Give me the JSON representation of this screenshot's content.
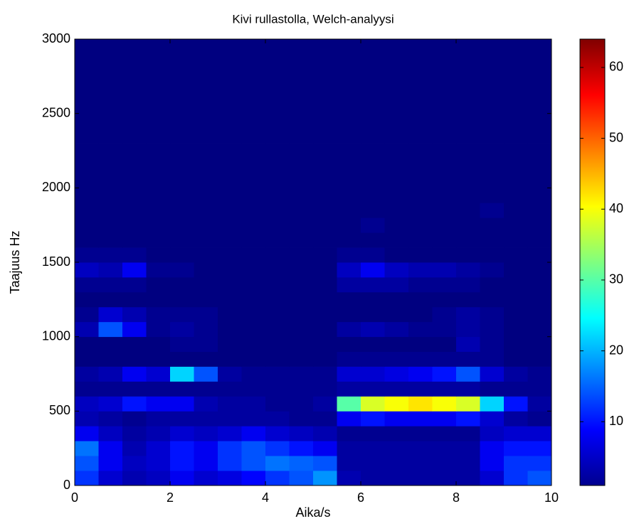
{
  "chart_data": {
    "type": "heatmap",
    "title": "Kivi rullastolla, Welch-analyysi",
    "x_label": "Aika/s",
    "y_label": "Taajuus Hz",
    "xlim": [
      0,
      10
    ],
    "ylim": [
      0,
      3000
    ],
    "xticks": [
      0,
      2,
      4,
      6,
      8,
      10
    ],
    "yticks": [
      0,
      500,
      1000,
      1500,
      2000,
      2500,
      3000
    ],
    "colormap": "jet",
    "clim": [
      1,
      64
    ],
    "cticks": [
      10,
      20,
      30,
      40,
      50,
      60
    ],
    "x": [
      0.25,
      0.75,
      1.25,
      1.75,
      2.25,
      2.75,
      3.25,
      3.75,
      4.25,
      4.75,
      5.25,
      5.75,
      6.25,
      6.75,
      7.25,
      7.75,
      8.25,
      8.75,
      9.25,
      9.75
    ],
    "y": [
      50,
      150,
      250,
      350,
      450,
      550,
      650,
      750,
      850,
      950,
      1050,
      1150,
      1250,
      1350,
      1450,
      1550,
      1650,
      1750,
      1850,
      1950,
      2050,
      2150,
      2250,
      2350,
      2450,
      2550,
      2650,
      2750,
      2850,
      2950
    ],
    "z": [
      [
        12,
        6,
        4,
        5,
        8,
        6,
        7,
        9,
        12,
        14,
        18,
        4,
        3,
        3,
        3,
        3,
        3,
        6,
        12,
        14
      ],
      [
        14,
        8,
        5,
        6,
        10,
        8,
        12,
        14,
        16,
        15,
        14,
        3,
        3,
        3,
        3,
        3,
        3,
        8,
        12,
        12
      ],
      [
        16,
        8,
        4,
        6,
        10,
        8,
        12,
        14,
        12,
        10,
        8,
        3,
        3,
        3,
        3,
        3,
        3,
        8,
        10,
        10
      ],
      [
        8,
        5,
        3,
        4,
        6,
        5,
        6,
        8,
        6,
        5,
        4,
        2,
        2,
        2,
        2,
        2,
        2,
        5,
        6,
        6
      ],
      [
        4,
        3,
        2,
        3,
        3,
        3,
        3,
        3,
        3,
        2,
        2,
        8,
        10,
        8,
        8,
        8,
        10,
        6,
        3,
        2
      ],
      [
        5,
        6,
        10,
        8,
        8,
        4,
        3,
        3,
        2,
        2,
        3,
        30,
        38,
        40,
        42,
        40,
        38,
        22,
        10,
        3
      ],
      [
        2,
        2,
        2,
        2,
        2,
        2,
        2,
        2,
        2,
        2,
        2,
        3,
        3,
        3,
        3,
        3,
        3,
        2,
        2,
        2
      ],
      [
        3,
        4,
        8,
        6,
        22,
        14,
        3,
        2,
        2,
        2,
        2,
        6,
        6,
        7,
        8,
        10,
        14,
        6,
        3,
        2
      ],
      [
        1,
        1,
        1,
        1,
        1,
        1,
        1,
        1,
        1,
        1,
        1,
        2,
        2,
        2,
        2,
        2,
        2,
        2,
        1,
        1
      ],
      [
        1,
        1,
        1,
        1,
        2,
        2,
        1,
        1,
        1,
        1,
        1,
        1,
        1,
        1,
        1,
        1,
        4,
        2,
        1,
        1
      ],
      [
        4,
        14,
        8,
        2,
        3,
        2,
        1,
        1,
        1,
        1,
        1,
        3,
        4,
        3,
        2,
        2,
        3,
        2,
        1,
        1
      ],
      [
        2,
        6,
        4,
        2,
        2,
        2,
        1,
        1,
        1,
        1,
        1,
        1,
        1,
        1,
        1,
        2,
        3,
        2,
        1,
        1
      ],
      [
        1,
        1,
        1,
        1,
        1,
        1,
        1,
        1,
        1,
        1,
        1,
        1,
        1,
        1,
        1,
        1,
        1,
        1,
        1,
        1
      ],
      [
        2,
        2,
        2,
        1,
        1,
        1,
        1,
        1,
        1,
        1,
        1,
        3,
        3,
        3,
        2,
        2,
        2,
        1,
        1,
        1
      ],
      [
        5,
        4,
        8,
        2,
        2,
        1,
        1,
        1,
        1,
        1,
        1,
        5,
        8,
        5,
        4,
        4,
        3,
        2,
        1,
        1
      ],
      [
        2,
        2,
        2,
        1,
        1,
        1,
        1,
        1,
        1,
        1,
        1,
        2,
        2,
        1,
        1,
        1,
        1,
        1,
        1,
        1
      ],
      [
        1,
        1,
        1,
        1,
        1,
        1,
        1,
        1,
        1,
        1,
        1,
        1,
        1,
        1,
        1,
        1,
        1,
        1,
        1,
        1
      ],
      [
        1,
        1,
        1,
        1,
        1,
        1,
        1,
        1,
        1,
        1,
        1,
        1,
        2,
        1,
        1,
        1,
        1,
        1,
        1,
        1
      ],
      [
        1,
        1,
        1,
        1,
        1,
        1,
        1,
        1,
        1,
        1,
        1,
        1,
        1,
        1,
        1,
        1,
        1,
        2,
        1,
        1
      ],
      [
        1,
        1,
        1,
        1,
        1,
        1,
        1,
        1,
        1,
        1,
        1,
        1,
        1,
        1,
        1,
        1,
        1,
        1,
        1,
        1
      ],
      [
        1,
        1,
        1,
        1,
        1,
        1,
        1,
        1,
        1,
        1,
        1,
        1,
        1,
        1,
        1,
        1,
        1,
        1,
        1,
        1
      ],
      [
        1,
        1,
        1,
        1,
        1,
        1,
        1,
        1,
        1,
        1,
        1,
        1,
        1,
        1,
        1,
        1,
        1,
        1,
        1,
        1
      ],
      [
        1,
        1,
        1,
        1,
        1,
        1,
        1,
        1,
        1,
        1,
        1,
        1,
        1,
        1,
        1,
        1,
        1,
        1,
        1,
        1
      ],
      [
        1,
        1,
        1,
        1,
        1,
        1,
        1,
        1,
        1,
        1,
        1,
        1,
        1,
        1,
        1,
        1,
        1,
        1,
        1,
        1
      ],
      [
        1,
        1,
        1,
        1,
        1,
        1,
        1,
        1,
        1,
        1,
        1,
        1,
        1,
        1,
        1,
        1,
        1,
        1,
        1,
        1
      ],
      [
        1,
        1,
        1,
        1,
        1,
        1,
        1,
        1,
        1,
        1,
        1,
        1,
        1,
        1,
        1,
        1,
        1,
        1,
        1,
        1
      ],
      [
        1,
        1,
        1,
        1,
        1,
        1,
        1,
        1,
        1,
        1,
        1,
        1,
        1,
        1,
        1,
        1,
        1,
        1,
        1,
        1
      ],
      [
        1,
        1,
        1,
        1,
        1,
        1,
        1,
        1,
        1,
        1,
        1,
        1,
        1,
        1,
        1,
        1,
        1,
        1,
        1,
        1
      ],
      [
        1,
        1,
        1,
        1,
        1,
        1,
        1,
        1,
        1,
        1,
        1,
        1,
        1,
        1,
        1,
        1,
        1,
        1,
        1,
        1
      ],
      [
        1,
        1,
        1,
        1,
        1,
        1,
        1,
        1,
        1,
        1,
        1,
        1,
        1,
        1,
        1,
        1,
        1,
        1,
        1,
        1
      ]
    ]
  }
}
